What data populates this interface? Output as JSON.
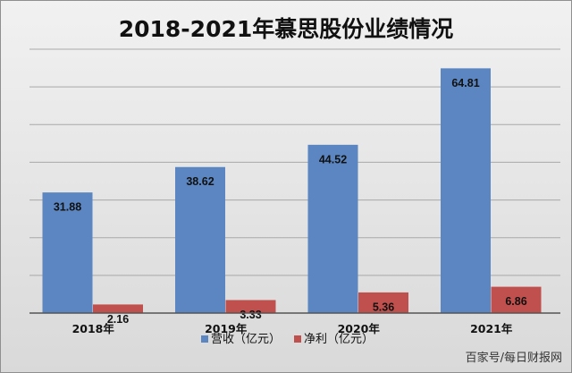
{
  "chart_data": {
    "type": "bar",
    "title": "2018-2021年慕思股份业绩情况",
    "categories": [
      "2018年",
      "2019年",
      "2020年",
      "2021年"
    ],
    "series": [
      {
        "name": "营收（亿元）",
        "values": [
          31.88,
          38.62,
          44.52,
          64.81
        ],
        "color": "#5b86c1",
        "labels": [
          "31.88",
          "38.62",
          "44.52",
          "64.81"
        ]
      },
      {
        "name": "净利（亿元）",
        "values": [
          2.16,
          3.33,
          5.36,
          6.86
        ],
        "color": "#c0504d",
        "labels": [
          "2.16",
          "3.33",
          "5.36",
          "6.86"
        ]
      }
    ],
    "ylim": [
      0,
      70
    ],
    "y_step": 10,
    "grid": true,
    "legend_position": "bottom"
  },
  "watermark": "百家号/每日财报网"
}
